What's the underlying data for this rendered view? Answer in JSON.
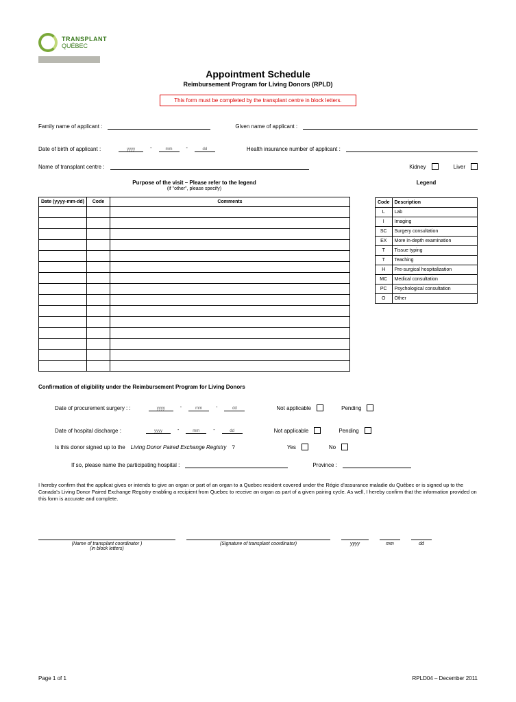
{
  "logo": {
    "line1": "TRANSPLANT",
    "line2": "QUÉBEC"
  },
  "header": {
    "title": "Appointment Schedule",
    "subtitle": "Reimbursement Program for Living Donors (RPLD)",
    "notice": "This form must be completed by the transplant centre in block letters."
  },
  "fields": {
    "family_name": "Family name of applicant :",
    "given_name": "Given name of applicant :",
    "dob": "Date of birth of applicant :",
    "health_ins": "Health insurance number of applicant :",
    "centre": "Name of transplant centre :",
    "kidney": "Kidney",
    "liver": "Liver",
    "yyyy": "yyyy",
    "mm": "mm",
    "dd": "dd"
  },
  "purpose": {
    "heading": "Purpose of the visit – Please refer to the legend",
    "sub": "(if \"other\", please specify)",
    "cols": {
      "date": "Date (yyyy-mm-dd)",
      "code": "Code",
      "comments": "Comments"
    },
    "rows": 15
  },
  "legend": {
    "heading": "Legend",
    "cols": {
      "code": "Code",
      "desc": "Description"
    },
    "items": [
      {
        "c": "L",
        "d": "Lab"
      },
      {
        "c": "I",
        "d": "Imaging"
      },
      {
        "c": "SC",
        "d": "Surgery consultation"
      },
      {
        "c": "EX",
        "d": "More in-depth examination"
      },
      {
        "c": "T",
        "d": "Tissue typing"
      },
      {
        "c": "T",
        "d": "Teaching"
      },
      {
        "c": "H",
        "d": "Pre-surgical hospitalization"
      },
      {
        "c": "MC",
        "d": "Medical consultation"
      },
      {
        "c": "PC",
        "d": "Psychological consultation"
      },
      {
        "c": "O",
        "d": "Other"
      }
    ]
  },
  "conf": {
    "title": "Confirmation of eligibility under the Reimbursement Program for Living Donors",
    "proc": "Date of procurement surgery : :",
    "disch": "Date of hospital discharge :",
    "na": "Not applicable",
    "pending": "Pending",
    "registry_q": "Is this donor signed up to the",
    "registry_name": "Living Donor Paired Exchange Registry",
    "qmark": "?",
    "yes": "Yes",
    "no": "No",
    "ifso": "If so, please name the participating hospital :",
    "province": "Province :"
  },
  "para": "I hereby confirm that the applicat gives or intends to give an organ or part of an organ to a Quebec resident covered under the Régie d'assurance maladie du Québec or is signed up to the Canada's Living Donor Paired Exchange Registry enabling a recipient from Quebec to receive an organ as part of a given pairing cycle. As well, I hereby confirm that the information provided on this form is accurate and complete.",
  "sigs": {
    "name": "(Name of transplant coordinator )",
    "name2": "(in block letters)",
    "sig": "(Signature of transplant coordinator)",
    "yyyy": "yyyy",
    "mm": "mm",
    "dd": "dd"
  },
  "footer": {
    "left": "Page 1 of 1",
    "right": "RPLD04 – December 2011"
  }
}
